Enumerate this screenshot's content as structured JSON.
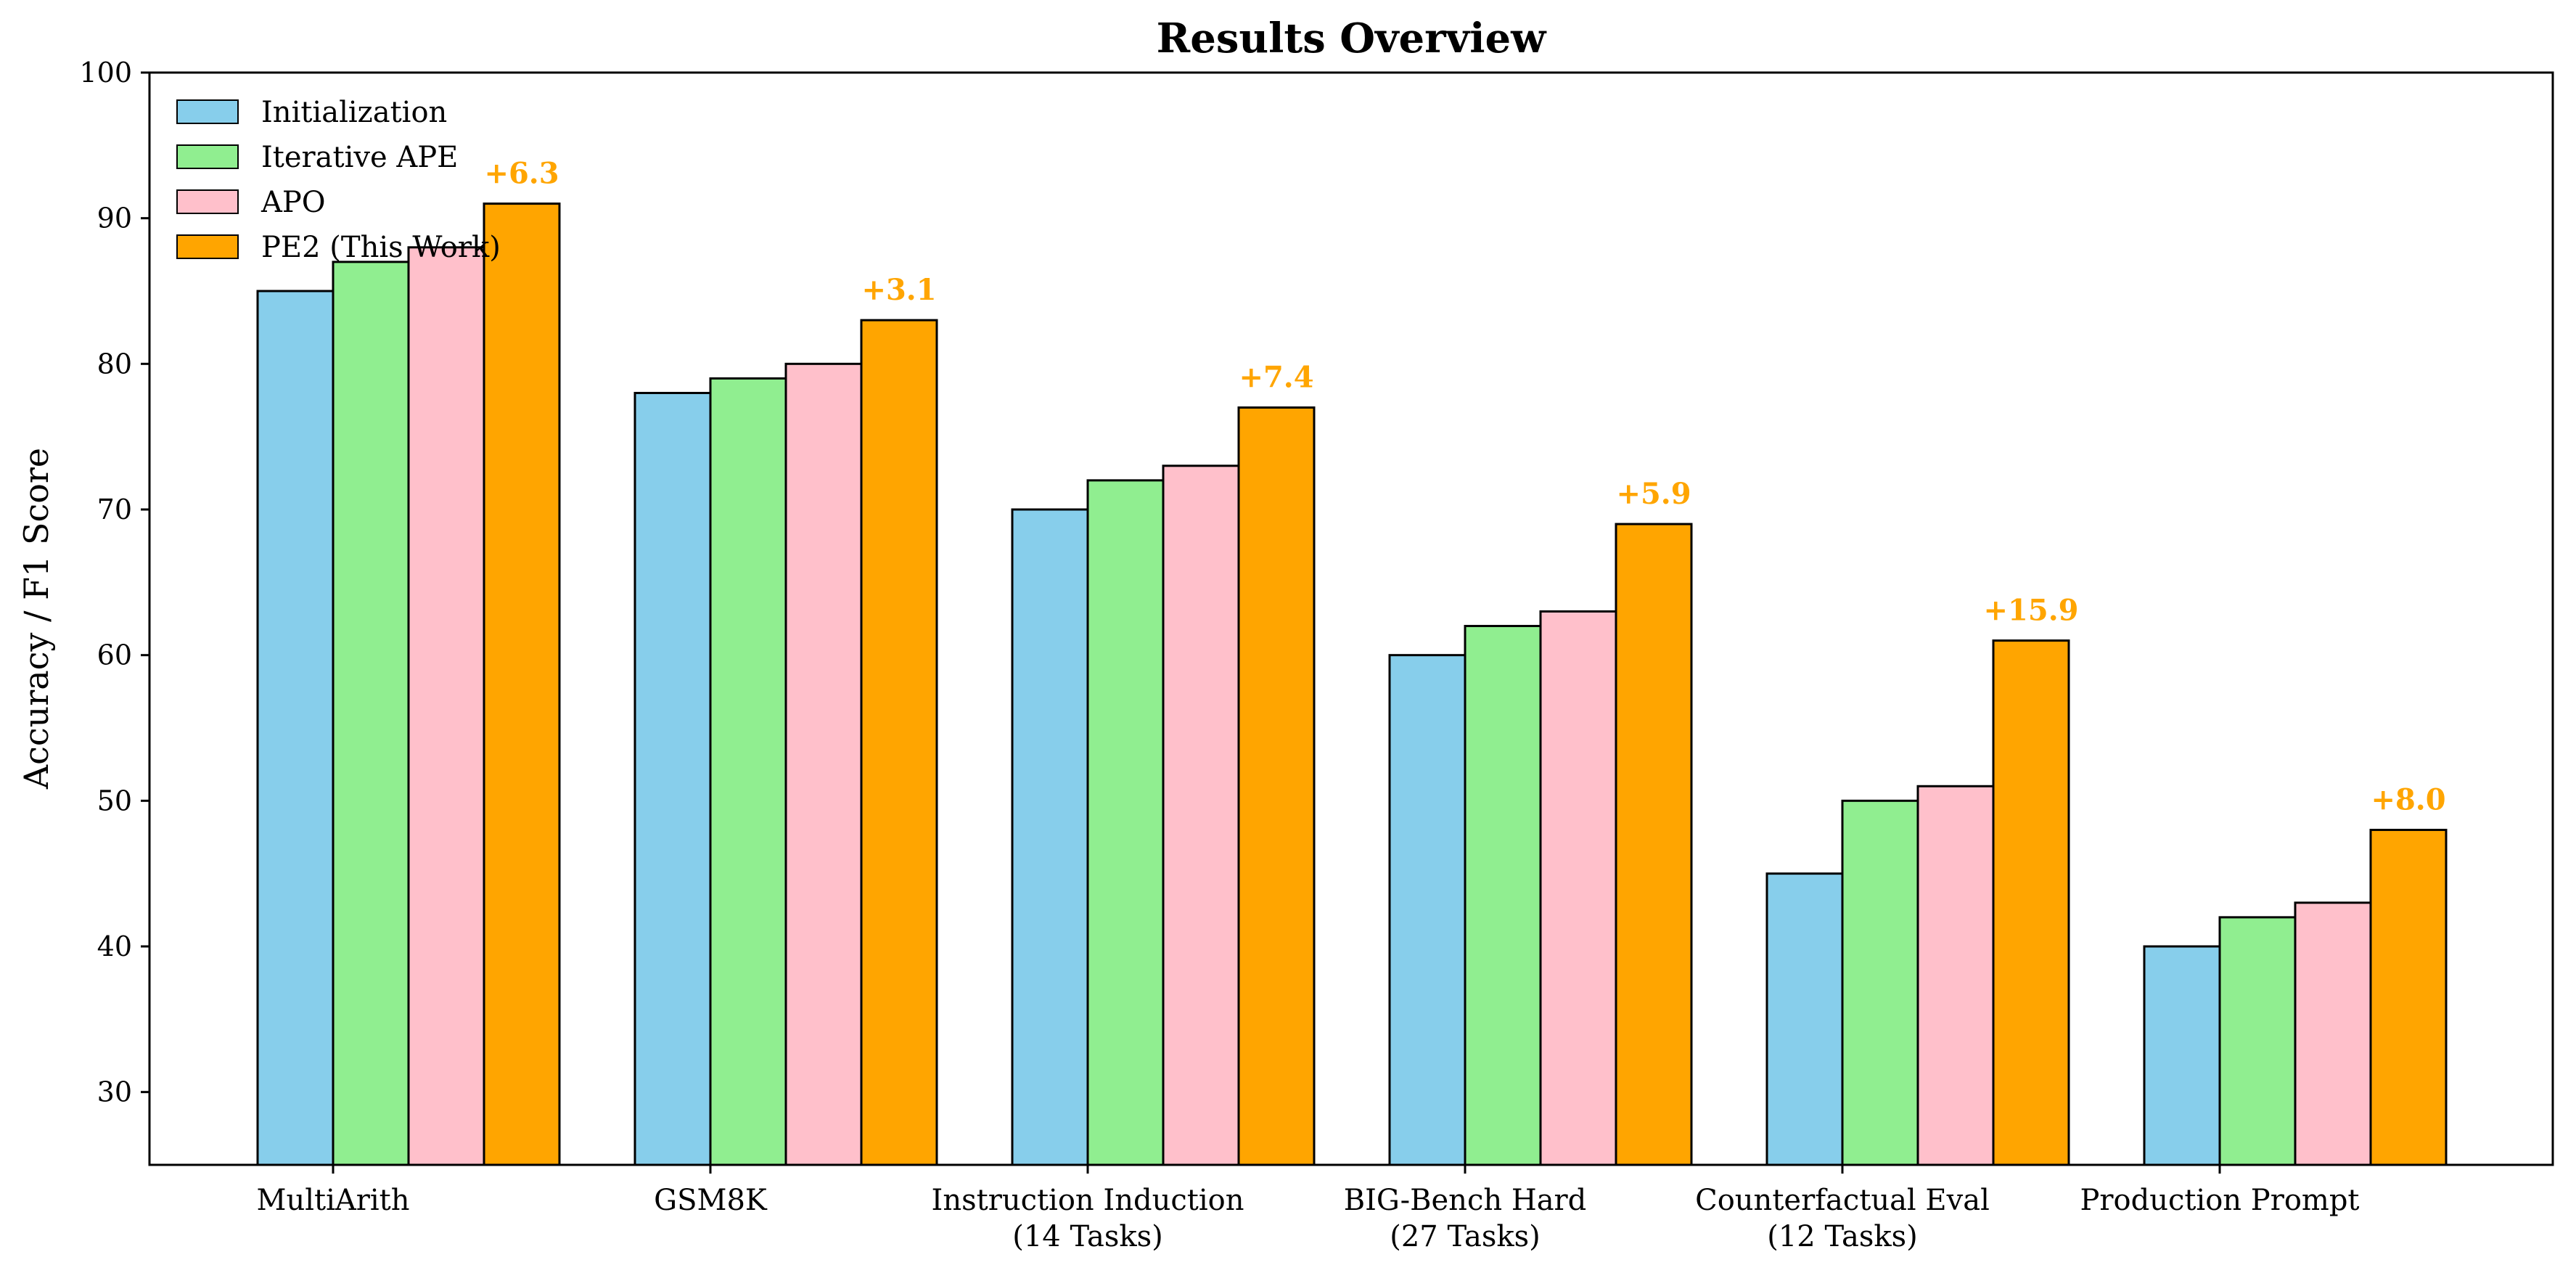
{
  "chart_data": {
    "type": "bar",
    "title": "Results Overview",
    "xlabel": "",
    "ylabel": "Accuracy / F1 Score",
    "ylim": [
      25,
      100
    ],
    "yticks": [
      30,
      40,
      50,
      60,
      70,
      80,
      90,
      100
    ],
    "categories": [
      [
        "MultiArith"
      ],
      [
        "GSM8K"
      ],
      [
        "Instruction Induction",
        "(14 Tasks)"
      ],
      [
        "BIG-Bench Hard",
        "(27 Tasks)"
      ],
      [
        "Counterfactual Eval",
        "(12 Tasks)"
      ],
      [
        "Production Prompt"
      ]
    ],
    "series": [
      {
        "name": "Initialization",
        "color": "#87CEEB",
        "values": [
          85,
          78,
          70,
          60,
          45,
          40
        ]
      },
      {
        "name": "Iterative APE",
        "color": "#90EE90",
        "values": [
          87,
          79,
          72,
          62,
          50,
          42
        ]
      },
      {
        "name": "APO",
        "color": "#FFC0CB",
        "values": [
          88,
          80,
          73,
          63,
          51,
          43
        ]
      },
      {
        "name": "PE2 (This Work)",
        "color": "#FFA500",
        "values": [
          91,
          83,
          77,
          69,
          61,
          48
        ]
      }
    ],
    "annotations": [
      "+6.3",
      "+3.1",
      "+7.4",
      "+5.9",
      "+15.9",
      "+8.0"
    ],
    "annotation_color": "#FFA500",
    "legend_position": "upper-left",
    "grid": false
  }
}
